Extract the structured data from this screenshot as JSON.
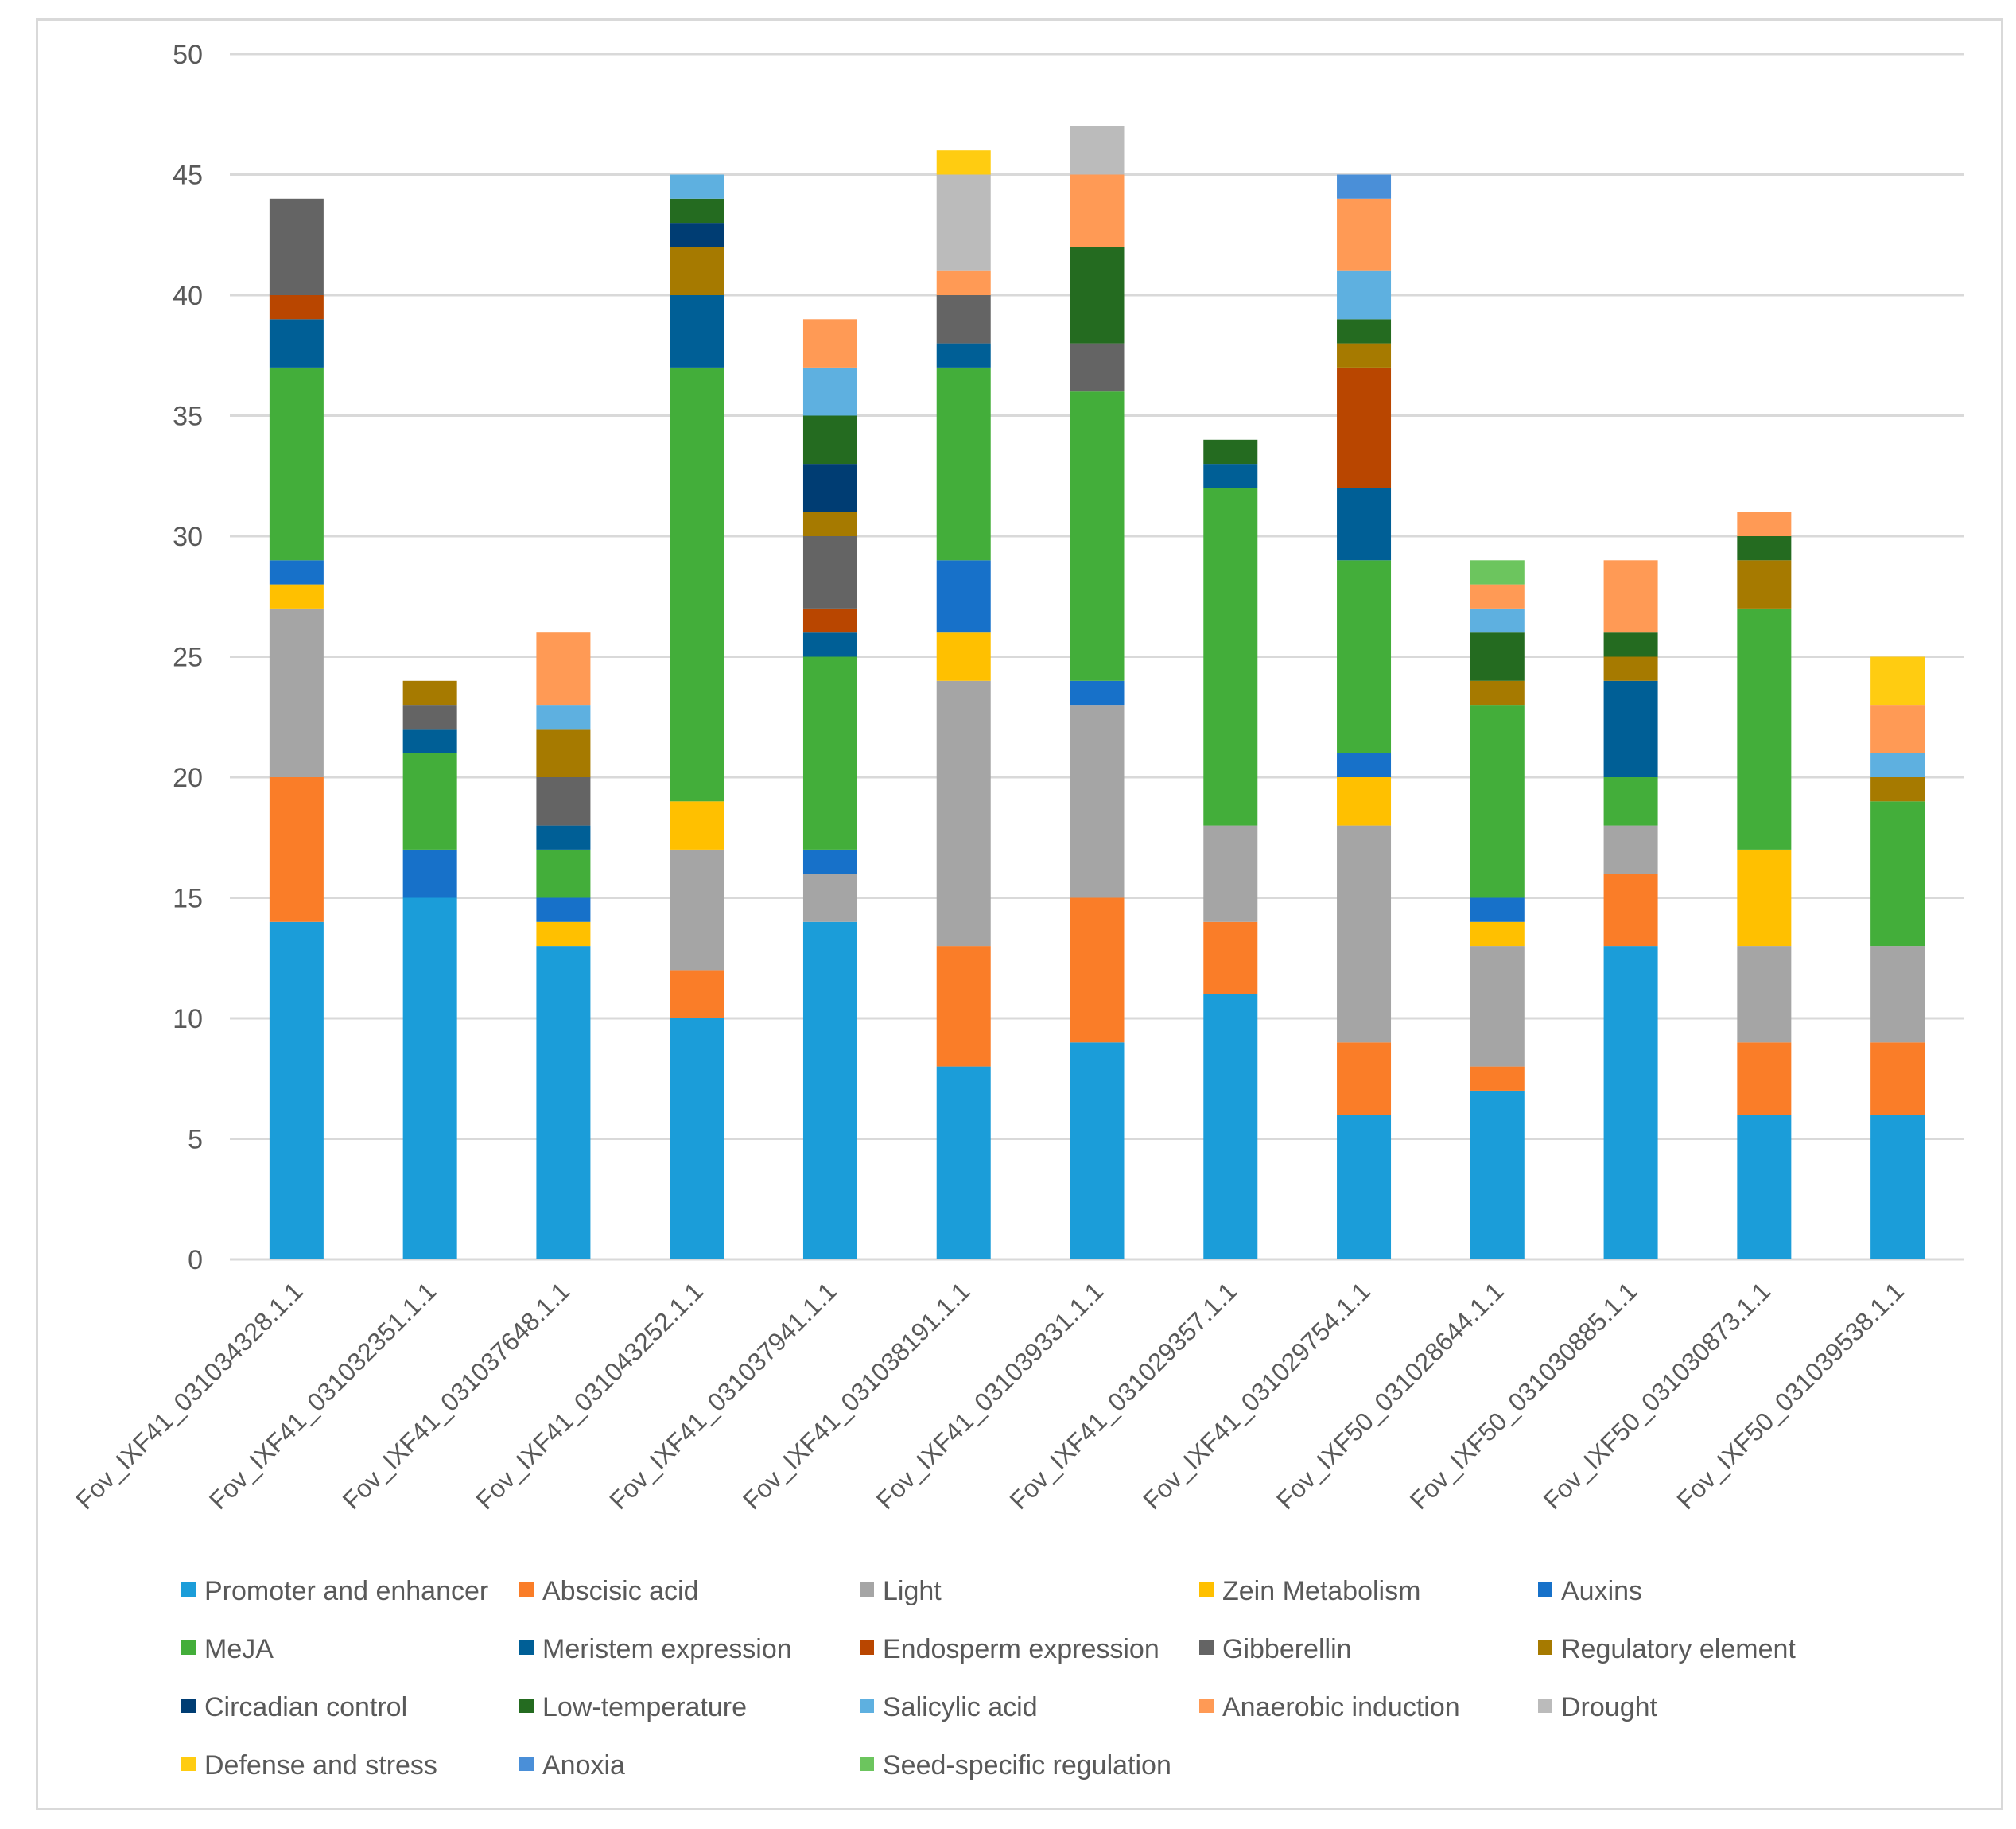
{
  "chart_data": {
    "type": "bar",
    "stacked": true,
    "title": "",
    "xlabel": "",
    "ylabel": "",
    "ylim": [
      0,
      50
    ],
    "yticks": [
      0,
      5,
      10,
      15,
      20,
      25,
      30,
      35,
      40,
      45,
      50
    ],
    "grid": true,
    "legend_position": "bottom",
    "categories": [
      "Fov_IXF41_031034328.1.1",
      "Fov_IXF41_031032351.1.1",
      "Fov_IXF41_031037648.1.1",
      "Fov_IXF41_031043252.1.1",
      "Fov_IXF41_031037941.1.1",
      "Fov_IXF41_031038191.1.1",
      "Fov_IXF41_031039331.1.1",
      "Fov_IXF41_031029357.1.1",
      "Fov_IXF41_031029754.1.1",
      "Fov_IXF50_031028644.1.1",
      "Fov_IXF50_031030885.1.1",
      "Fov_IXF50_031030873.1.1",
      "Fov_IXF50_031039538.1.1"
    ],
    "series": [
      {
        "name": "Promoter and enhancer",
        "color": "#1B9DD9",
        "values": [
          14,
          15,
          13,
          10,
          14,
          8,
          9,
          11,
          6,
          7,
          13,
          6,
          6
        ]
      },
      {
        "name": "Abscisic acid",
        "color": "#FA7D28",
        "values": [
          6,
          0,
          0,
          2,
          0,
          5,
          6,
          3,
          3,
          1,
          3,
          3,
          3
        ]
      },
      {
        "name": "Light",
        "color": "#A5A5A5",
        "values": [
          7,
          0,
          0,
          5,
          2,
          11,
          8,
          4,
          9,
          5,
          2,
          4,
          4
        ]
      },
      {
        "name": "Zein Metabolism",
        "color": "#FFC000",
        "values": [
          1,
          0,
          1,
          2,
          0,
          2,
          0,
          0,
          2,
          1,
          0,
          4,
          0
        ]
      },
      {
        "name": "Auxins",
        "color": "#1771C9",
        "values": [
          1,
          2,
          1,
          0,
          1,
          3,
          1,
          0,
          1,
          1,
          0,
          0,
          0
        ]
      },
      {
        "name": "MeJA",
        "color": "#43AE3A",
        "values": [
          8,
          4,
          2,
          18,
          8,
          8,
          12,
          14,
          8,
          8,
          2,
          10,
          6
        ]
      },
      {
        "name": "Meristem expression",
        "color": "#005F96",
        "values": [
          2,
          1,
          1,
          3,
          1,
          1,
          0,
          1,
          3,
          0,
          4,
          0,
          0
        ]
      },
      {
        "name": "Endosperm expression",
        "color": "#B94600",
        "values": [
          1,
          0,
          0,
          0,
          1,
          0,
          0,
          0,
          5,
          0,
          0,
          0,
          0
        ]
      },
      {
        "name": "Gibberellin",
        "color": "#646464",
        "values": [
          4,
          1,
          2,
          0,
          3,
          2,
          2,
          0,
          0,
          0,
          0,
          0,
          0
        ]
      },
      {
        "name": "Regulatory element",
        "color": "#A67A00",
        "values": [
          0,
          1,
          2,
          2,
          1,
          0,
          0,
          0,
          1,
          1,
          1,
          2,
          1
        ]
      },
      {
        "name": "Circadian control",
        "color": "#003D73",
        "values": [
          0,
          0,
          0,
          1,
          2,
          0,
          0,
          0,
          0,
          0,
          0,
          0,
          0
        ]
      },
      {
        "name": "Low-temperature",
        "color": "#246B20",
        "values": [
          0,
          0,
          0,
          1,
          2,
          0,
          4,
          1,
          1,
          2,
          1,
          1,
          0
        ]
      },
      {
        "name": "Salicylic acid",
        "color": "#5EB0E0",
        "values": [
          0,
          0,
          1,
          1,
          2,
          0,
          0,
          0,
          2,
          1,
          0,
          0,
          1
        ]
      },
      {
        "name": "Anaerobic induction",
        "color": "#FF9A55",
        "values": [
          0,
          0,
          3,
          0,
          2,
          1,
          3,
          0,
          3,
          1,
          3,
          1,
          2
        ]
      },
      {
        "name": "Drought",
        "color": "#BBBBBB",
        "values": [
          0,
          0,
          0,
          0,
          0,
          4,
          2,
          0,
          0,
          0,
          0,
          0,
          0
        ]
      },
      {
        "name": "Defense and stress",
        "color": "#FFCC11",
        "values": [
          0,
          0,
          0,
          0,
          0,
          1,
          0,
          0,
          0,
          0,
          0,
          0,
          2
        ]
      },
      {
        "name": "Anoxia",
        "color": "#4A8FD8",
        "values": [
          0,
          0,
          0,
          0,
          0,
          0,
          0,
          0,
          1,
          0,
          0,
          0,
          0
        ]
      },
      {
        "name": "Seed-specific regulation",
        "color": "#6CC55E",
        "values": [
          0,
          0,
          0,
          0,
          0,
          0,
          0,
          0,
          0,
          1,
          0,
          0,
          0
        ]
      }
    ]
  }
}
